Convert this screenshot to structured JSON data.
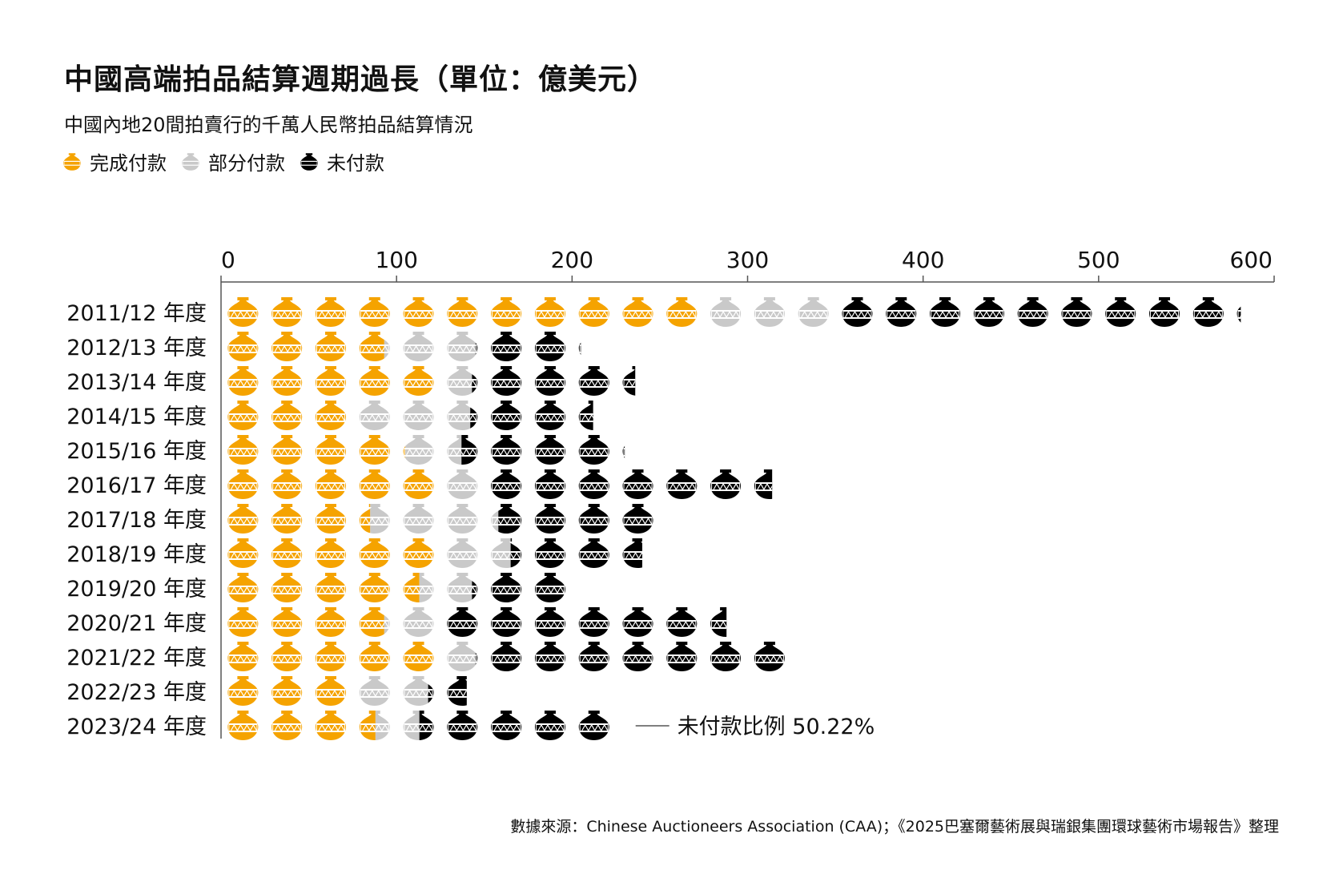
{
  "title": "中國高端拍品結算週期過長（單位：億美元）",
  "subtitle": "中國內地20間拍賣行的千萬人民幣拍品結算情況",
  "legend": [
    {
      "label": "完成付款",
      "color": "#F5A300"
    },
    {
      "label": "部分付款",
      "color": "#C9C9C9"
    },
    {
      "label": "未付款",
      "color": "#000000"
    }
  ],
  "annotation": "未付款比例 50.22%",
  "footnote": "數據來源：Chinese Auctioneers Association (CAA)；《2025巴塞爾藝術展與瑞銀集團環球藝術市場報告》整理",
  "chart_data": {
    "type": "bar",
    "orientation": "horizontal-pictogram",
    "icon": "vase-icon",
    "icon_unit": 25,
    "xlim": [
      0,
      600
    ],
    "xticks": [
      0,
      100,
      200,
      300,
      400,
      500,
      600
    ],
    "categories": [
      "2011/12 年度",
      "2012/13 年度",
      "2013/14 年度",
      "2014/15 年度",
      "2015/16 年度",
      "2016/17 年度",
      "2017/18 年度",
      "2018/19 年度",
      "2019/20 年度",
      "2020/21 年度",
      "2021/22 年度",
      "2022/23 年度",
      "2023/24 年度"
    ],
    "series": [
      {
        "name": "完成付款",
        "color": "#F5A300",
        "values": [
          275,
          93,
          125,
          75,
          105,
          125,
          85,
          125,
          113,
          93,
          125,
          75,
          88
        ]
      },
      {
        "name": "部分付款",
        "color": "#C9C9C9",
        "values": [
          73,
          52,
          18,
          67,
          32,
          26,
          73,
          40,
          30,
          32,
          20,
          43,
          25
        ]
      },
      {
        "name": "未付款",
        "color": "#000000",
        "values": [
          233,
          60,
          93,
          70,
          93,
          163,
          89,
          75,
          60,
          163,
          180,
          22,
          115
        ]
      }
    ]
  }
}
